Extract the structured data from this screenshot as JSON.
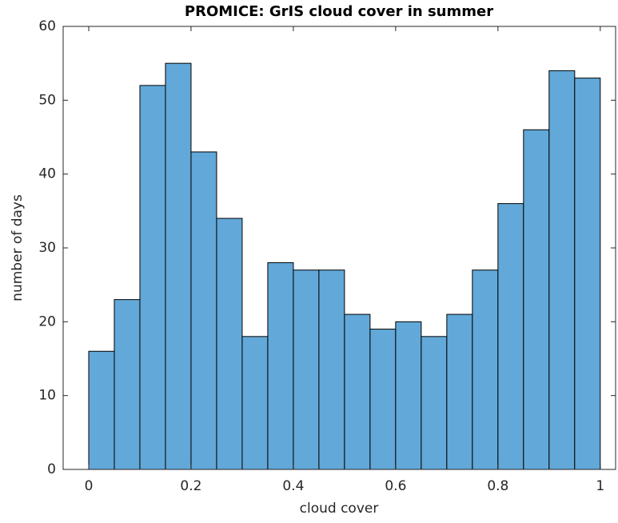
{
  "chart_data": {
    "type": "histogram",
    "title": "PROMICE: GrIS cloud cover in summer",
    "x_label": "cloud cover",
    "y_label": "number of days",
    "bins": [
      0,
      0.05,
      0.1,
      0.15,
      0.2,
      0.25,
      0.3,
      0.35,
      0.4,
      0.45,
      0.5,
      0.55,
      0.6,
      0.65,
      0.7,
      0.75,
      0.8,
      0.85,
      0.9,
      0.95,
      1
    ],
    "counts": [
      16,
      23,
      52,
      55,
      43,
      34,
      18,
      28,
      27,
      27,
      21,
      19,
      20,
      18,
      21,
      27,
      36,
      46,
      54,
      53
    ],
    "color": "#62a8d8",
    "xlim": [
      -0.05,
      1.03
    ],
    "ylim": [
      0,
      60
    ],
    "xticks": [
      0,
      0.2,
      0.4,
      0.6,
      0.8,
      1
    ],
    "yticks": [
      0,
      10,
      20,
      30,
      40,
      50,
      60
    ]
  }
}
